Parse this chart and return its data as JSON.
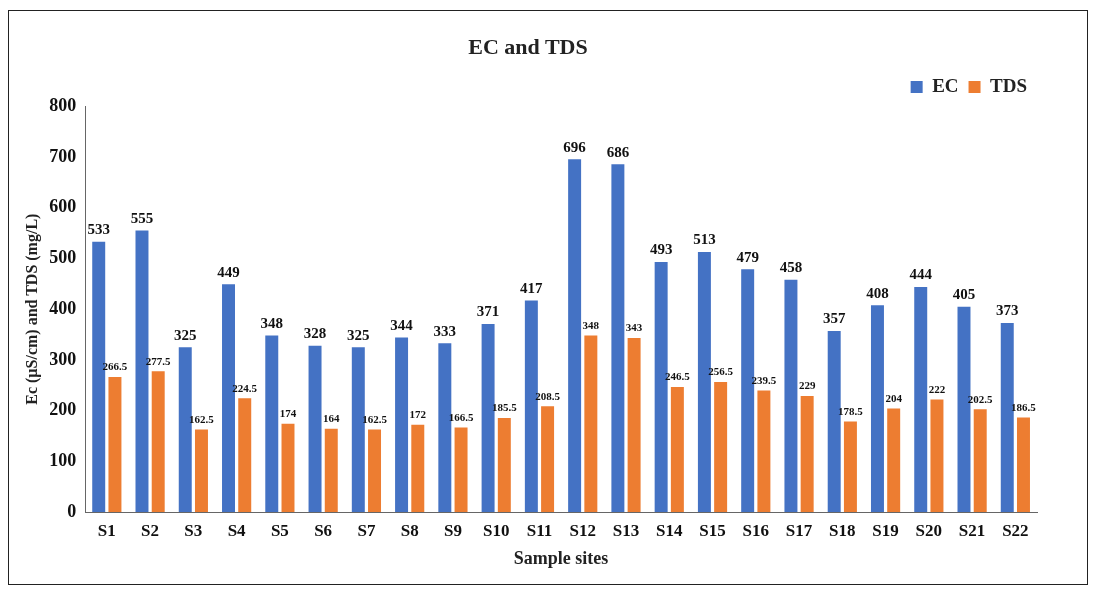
{
  "chart_data": {
    "type": "bar",
    "title": "EC and TDS",
    "xlabel": "Sample sites",
    "ylabel": "Ec (µS/cm) and TDS (mg/L)",
    "categories": [
      "S1",
      "S2",
      "S3",
      "S4",
      "S5",
      "S6",
      "S7",
      "S8",
      "S9",
      "S10",
      "S11",
      "S12",
      "S13",
      "S14",
      "S15",
      "S16",
      "S17",
      "S18",
      "S19",
      "S20",
      "S21",
      "S22"
    ],
    "series": [
      {
        "name": "EC",
        "color": "#4472c4",
        "values": [
          533,
          555,
          325,
          449,
          348,
          328,
          325,
          344,
          333,
          371,
          417,
          696,
          686,
          493,
          513,
          479,
          458,
          357,
          408,
          444,
          405,
          373
        ]
      },
      {
        "name": "TDS",
        "color": "#ed7d31",
        "values": [
          266.5,
          277.5,
          162.5,
          224.5,
          174,
          164,
          162.5,
          172,
          166.5,
          185.5,
          208.5,
          348,
          343,
          246.5,
          256.5,
          239.5,
          229,
          178.5,
          204,
          222,
          202.5,
          186.5
        ]
      }
    ],
    "ylim": [
      0,
      800
    ],
    "yticks": [
      0,
      100,
      200,
      300,
      400,
      500,
      600,
      700,
      800
    ],
    "grid": false,
    "legend": "top right",
    "data_labels": true
  }
}
